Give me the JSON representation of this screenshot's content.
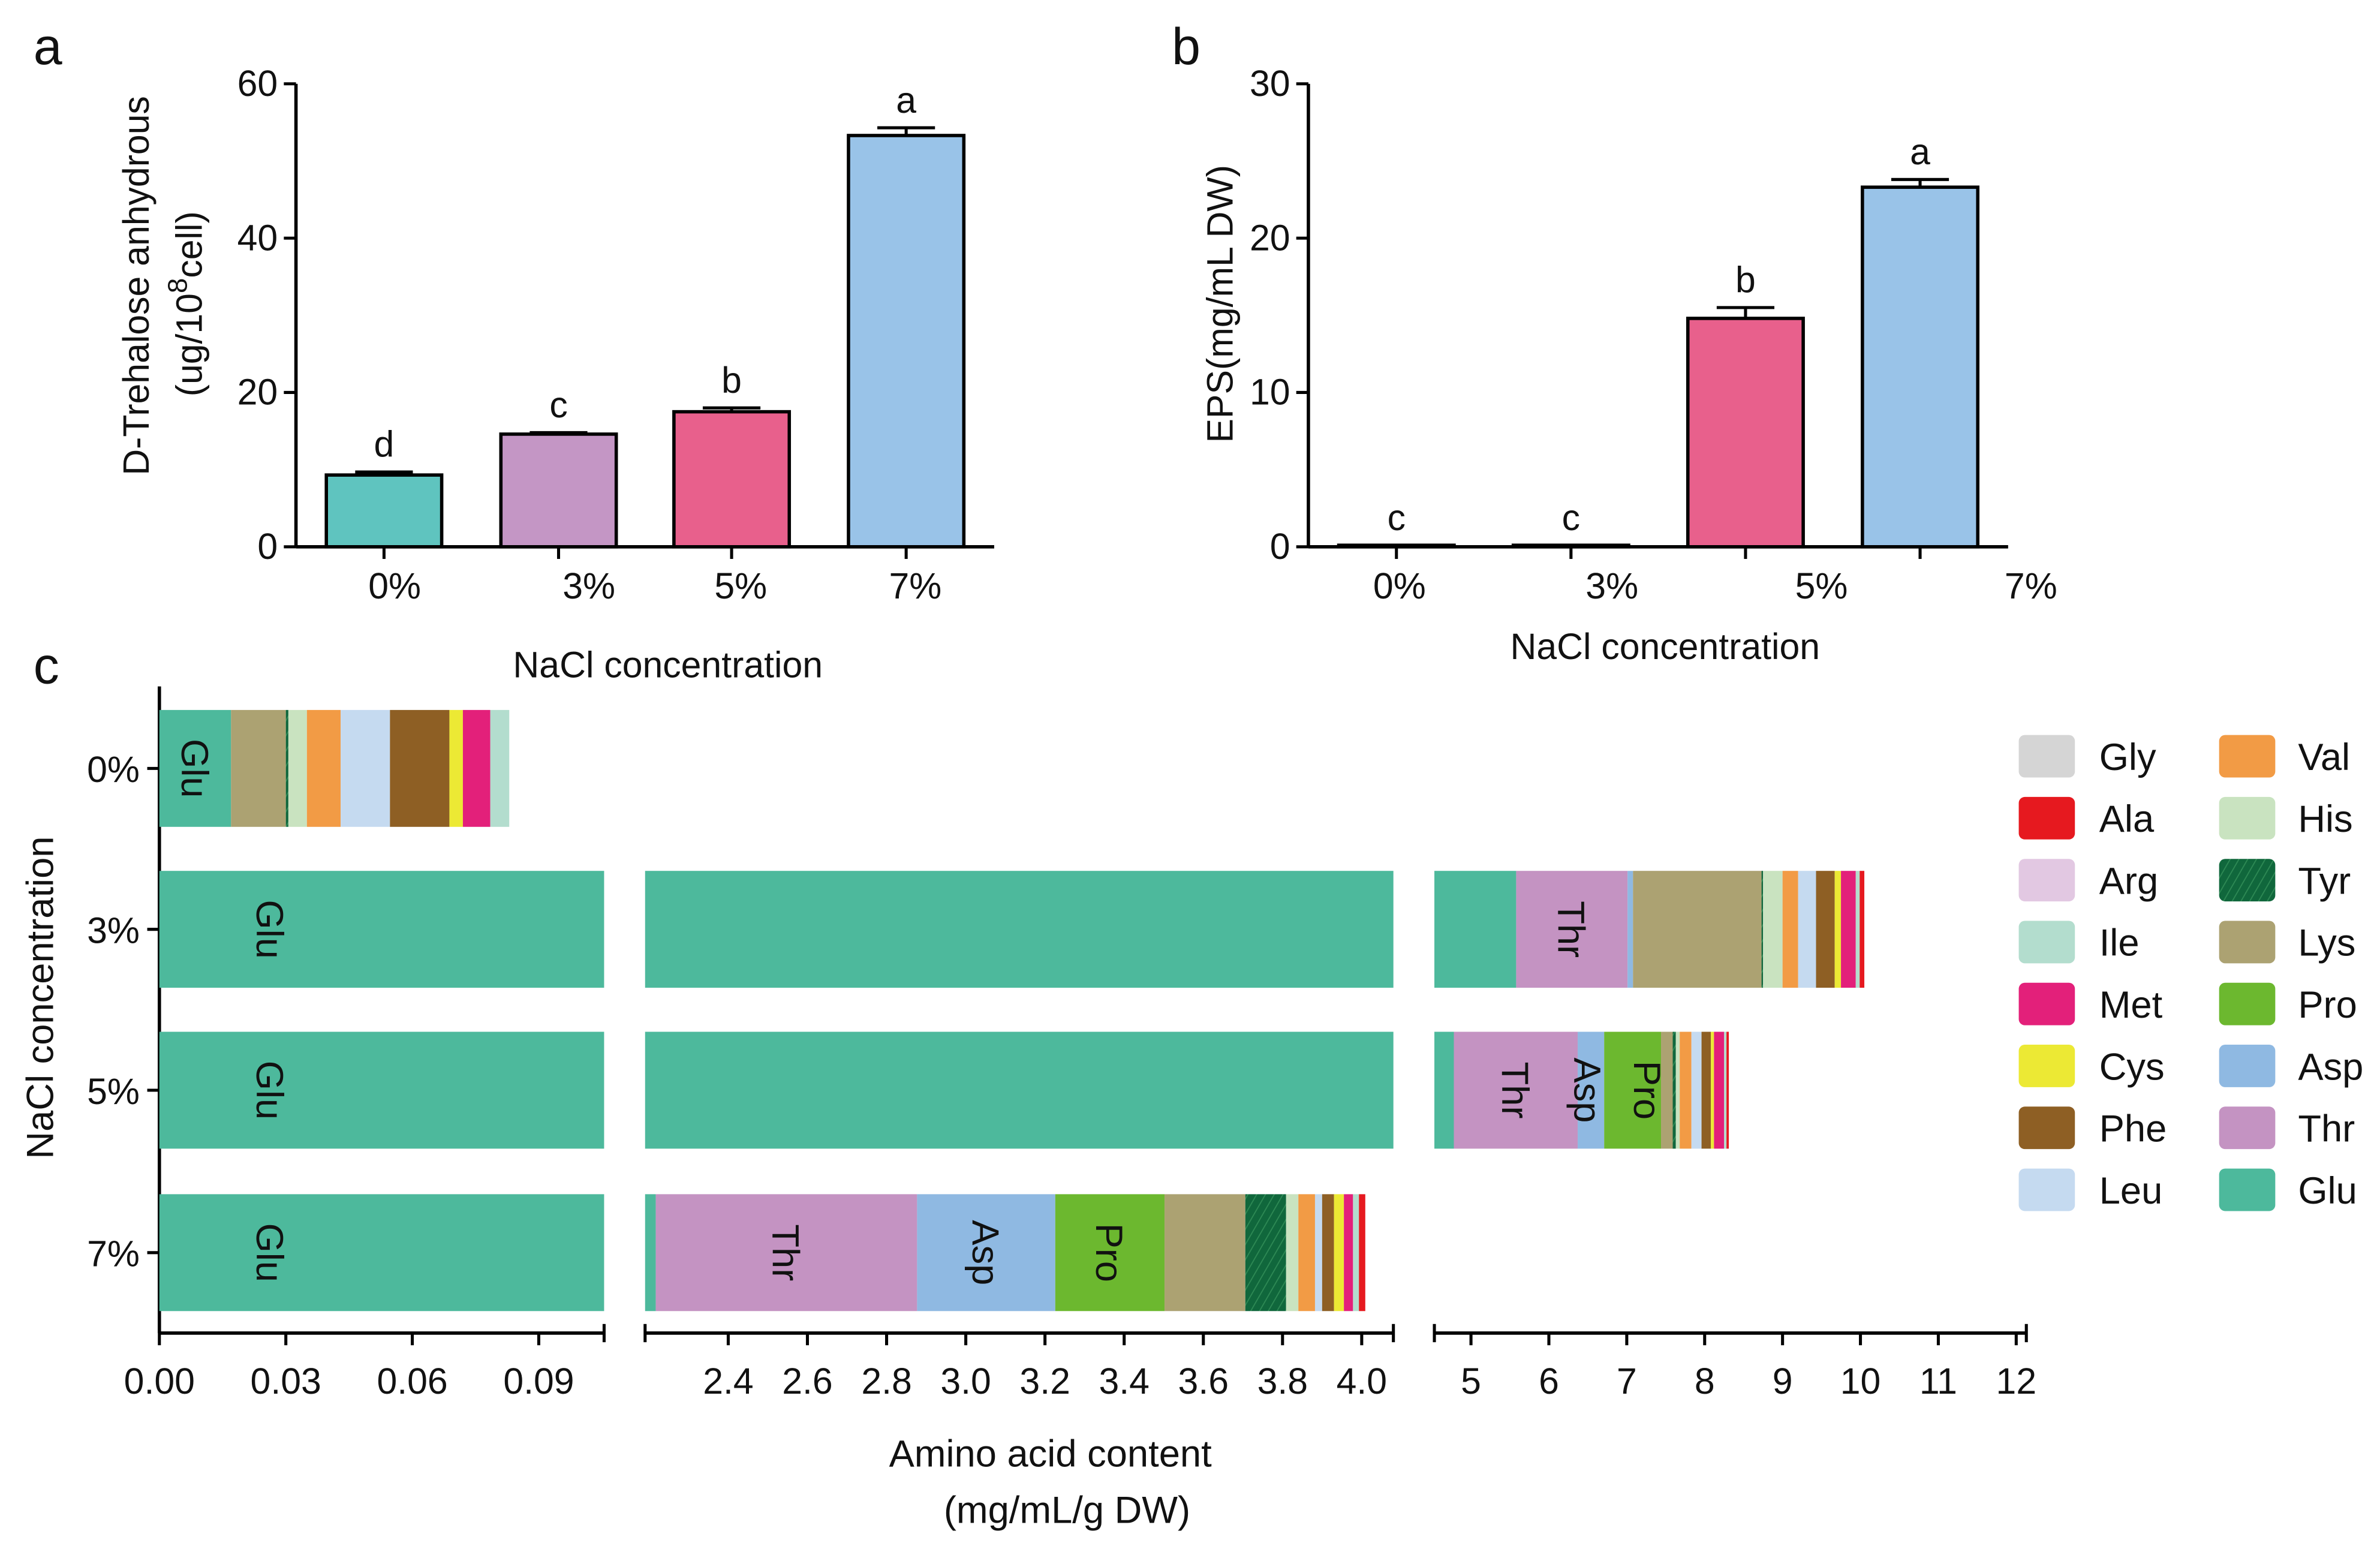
{
  "chart_data": [
    {
      "panel": "a",
      "type": "bar",
      "title": "",
      "categories": [
        "0%",
        "3%",
        "5%",
        "7%"
      ],
      "values": [
        9.3,
        14.6,
        17.5,
        53.3
      ],
      "errors": [
        0.4,
        0.2,
        0.5,
        1.0
      ],
      "significance": [
        "d",
        "c",
        "b",
        "a"
      ],
      "colors": [
        "#5fc4bf",
        "#c496c5",
        "#e8608c",
        "#99c3e8"
      ],
      "ylabel_line1": "D-Trehalose anhydrous",
      "ylabel_line2": "(ug/10",
      "ylabel_sup": "8",
      "ylabel_line2_end": "cell)",
      "xlabel": "NaCl concentration",
      "ylim": [
        0,
        60
      ],
      "yticks": [
        0,
        20,
        40,
        60
      ]
    },
    {
      "panel": "b",
      "type": "bar",
      "title": "",
      "categories": [
        "0%",
        "3%",
        "5%",
        "7%"
      ],
      "values": [
        0.1,
        0.1,
        14.8,
        23.3
      ],
      "errors": [
        0,
        0,
        0.7,
        0.5
      ],
      "significance": [
        "c",
        "c",
        "b",
        "a"
      ],
      "colors": [
        "#5fc4bf",
        "#c496c5",
        "#e8608c",
        "#99c3e8"
      ],
      "ylabel": "EPS(mg/mL DW)",
      "xlabel": "NaCl concentration",
      "ylim": [
        0,
        30
      ],
      "yticks": [
        0,
        10,
        20,
        30
      ]
    },
    {
      "panel": "c",
      "type": "bar",
      "orientation": "horizontal-stacked",
      "categories": [
        "0%",
        "3%",
        "5%",
        "7%"
      ],
      "ylabel": "NaCl concentration",
      "xlabel_line1": "Amino acid content",
      "xlabel_line2": "(mg/mL/g DW)",
      "axis_segments": [
        {
          "range": [
            0,
            0.1055
          ],
          "ticks": [
            0,
            0.03,
            0.06,
            0.09
          ],
          "tick_labels": [
            "0.00",
            "0.03",
            "0.06",
            "0.09"
          ]
        },
        {
          "range": [
            2.19,
            4.08
          ],
          "ticks": [
            2.4,
            2.6,
            2.8,
            3.0,
            3.2,
            3.4,
            3.6,
            3.8,
            4.0
          ],
          "tick_labels": [
            "2.4",
            "2.6",
            "2.8",
            "3.0",
            "3.2",
            "3.4",
            "3.6",
            "3.8",
            "4.0"
          ]
        },
        {
          "range": [
            4.53,
            12.13
          ],
          "ticks": [
            5,
            6,
            7,
            8,
            9,
            10,
            11,
            12
          ],
          "tick_labels": [
            "5",
            "6",
            "7",
            "8",
            "9",
            "10",
            "11",
            "12"
          ]
        }
      ],
      "stack_order": [
        "Glu",
        "Thr",
        "Asp",
        "Pro",
        "Lys",
        "Tyr",
        "His",
        "Val",
        "Leu",
        "Phe",
        "Cys",
        "Met",
        "Ile",
        "Arg",
        "Ala",
        "Gly"
      ],
      "series": [
        {
          "name": "Glu",
          "color": "#4db99c",
          "values": [
            0.017,
            5.58,
            4.78,
            2.217
          ]
        },
        {
          "name": "Thr",
          "color": "#c493c2",
          "values": [
            0,
            1.43,
            1.59,
            0.66
          ]
        },
        {
          "name": "Asp",
          "color": "#8fb9e2",
          "values": [
            0,
            0.07,
            0.34,
            0.349
          ]
        },
        {
          "name": "Pro",
          "color": "#6cb82f",
          "values": [
            0,
            0,
            0.73,
            0.276
          ]
        },
        {
          "name": "Lys",
          "color": "#aca272",
          "values": [
            0.013,
            1.65,
            0.15,
            0.204
          ]
        },
        {
          "name": "Tyr",
          "color": "#10673c",
          "hatched": true,
          "values": [
            0.0006,
            0.02,
            0.04,
            0.103
          ]
        },
        {
          "name": "His",
          "color": "#c9e3c0",
          "values": [
            0.0044,
            0.25,
            0.05,
            0.031
          ]
        },
        {
          "name": "Val",
          "color": "#f29b45",
          "values": [
            0.008,
            0.2,
            0.15,
            0.042
          ]
        },
        {
          "name": "Leu",
          "color": "#c5daf0",
          "values": [
            0.0117,
            0.23,
            0.13,
            0.018
          ]
        },
        {
          "name": "Phe",
          "color": "#8e5f24",
          "values": [
            0.0141,
            0.24,
            0.12,
            0.03
          ]
        },
        {
          "name": "Cys",
          "color": "#ece934",
          "values": [
            0.0032,
            0.08,
            0.04,
            0.025
          ]
        },
        {
          "name": "Met",
          "color": "#e3207a",
          "values": [
            0.0065,
            0.19,
            0.13,
            0.023
          ]
        },
        {
          "name": "Ile",
          "color": "#b3ddce",
          "values": [
            0.0045,
            0.05,
            0.03,
            0.015
          ]
        },
        {
          "name": "Arg",
          "color": "#e2c8e2",
          "values": [
            0,
            0,
            0,
            0
          ]
        },
        {
          "name": "Ala",
          "color": "#e6191f",
          "values": [
            0,
            0.06,
            0.03,
            0.016
          ]
        },
        {
          "name": "Gly",
          "color": "#d5d5d5",
          "values": [
            0,
            0,
            0,
            0
          ]
        }
      ],
      "bar_labels": [
        {
          "row": 0,
          "name": "Glu"
        },
        {
          "row": 1,
          "name": "Glu"
        },
        {
          "row": 1,
          "name": "Thr"
        },
        {
          "row": 2,
          "name": "Glu"
        },
        {
          "row": 2,
          "name": "Thr"
        },
        {
          "row": 2,
          "name": "Asp"
        },
        {
          "row": 2,
          "name": "Pro"
        },
        {
          "row": 3,
          "name": "Glu"
        },
        {
          "row": 3,
          "name": "Thr"
        },
        {
          "row": 3,
          "name": "Asp"
        },
        {
          "row": 3,
          "name": "Pro"
        }
      ],
      "legend": {
        "placement": "right",
        "columns": [
          [
            "Gly",
            "Ala",
            "Arg",
            "Ile",
            "Met",
            "Cys",
            "Phe",
            "Leu"
          ],
          [
            "Val",
            "His",
            "Tyr",
            "Lys",
            "Pro",
            "Asp",
            "Thr",
            "Glu"
          ]
        ]
      }
    }
  ],
  "panel_labels": [
    "a",
    "b",
    "c"
  ]
}
